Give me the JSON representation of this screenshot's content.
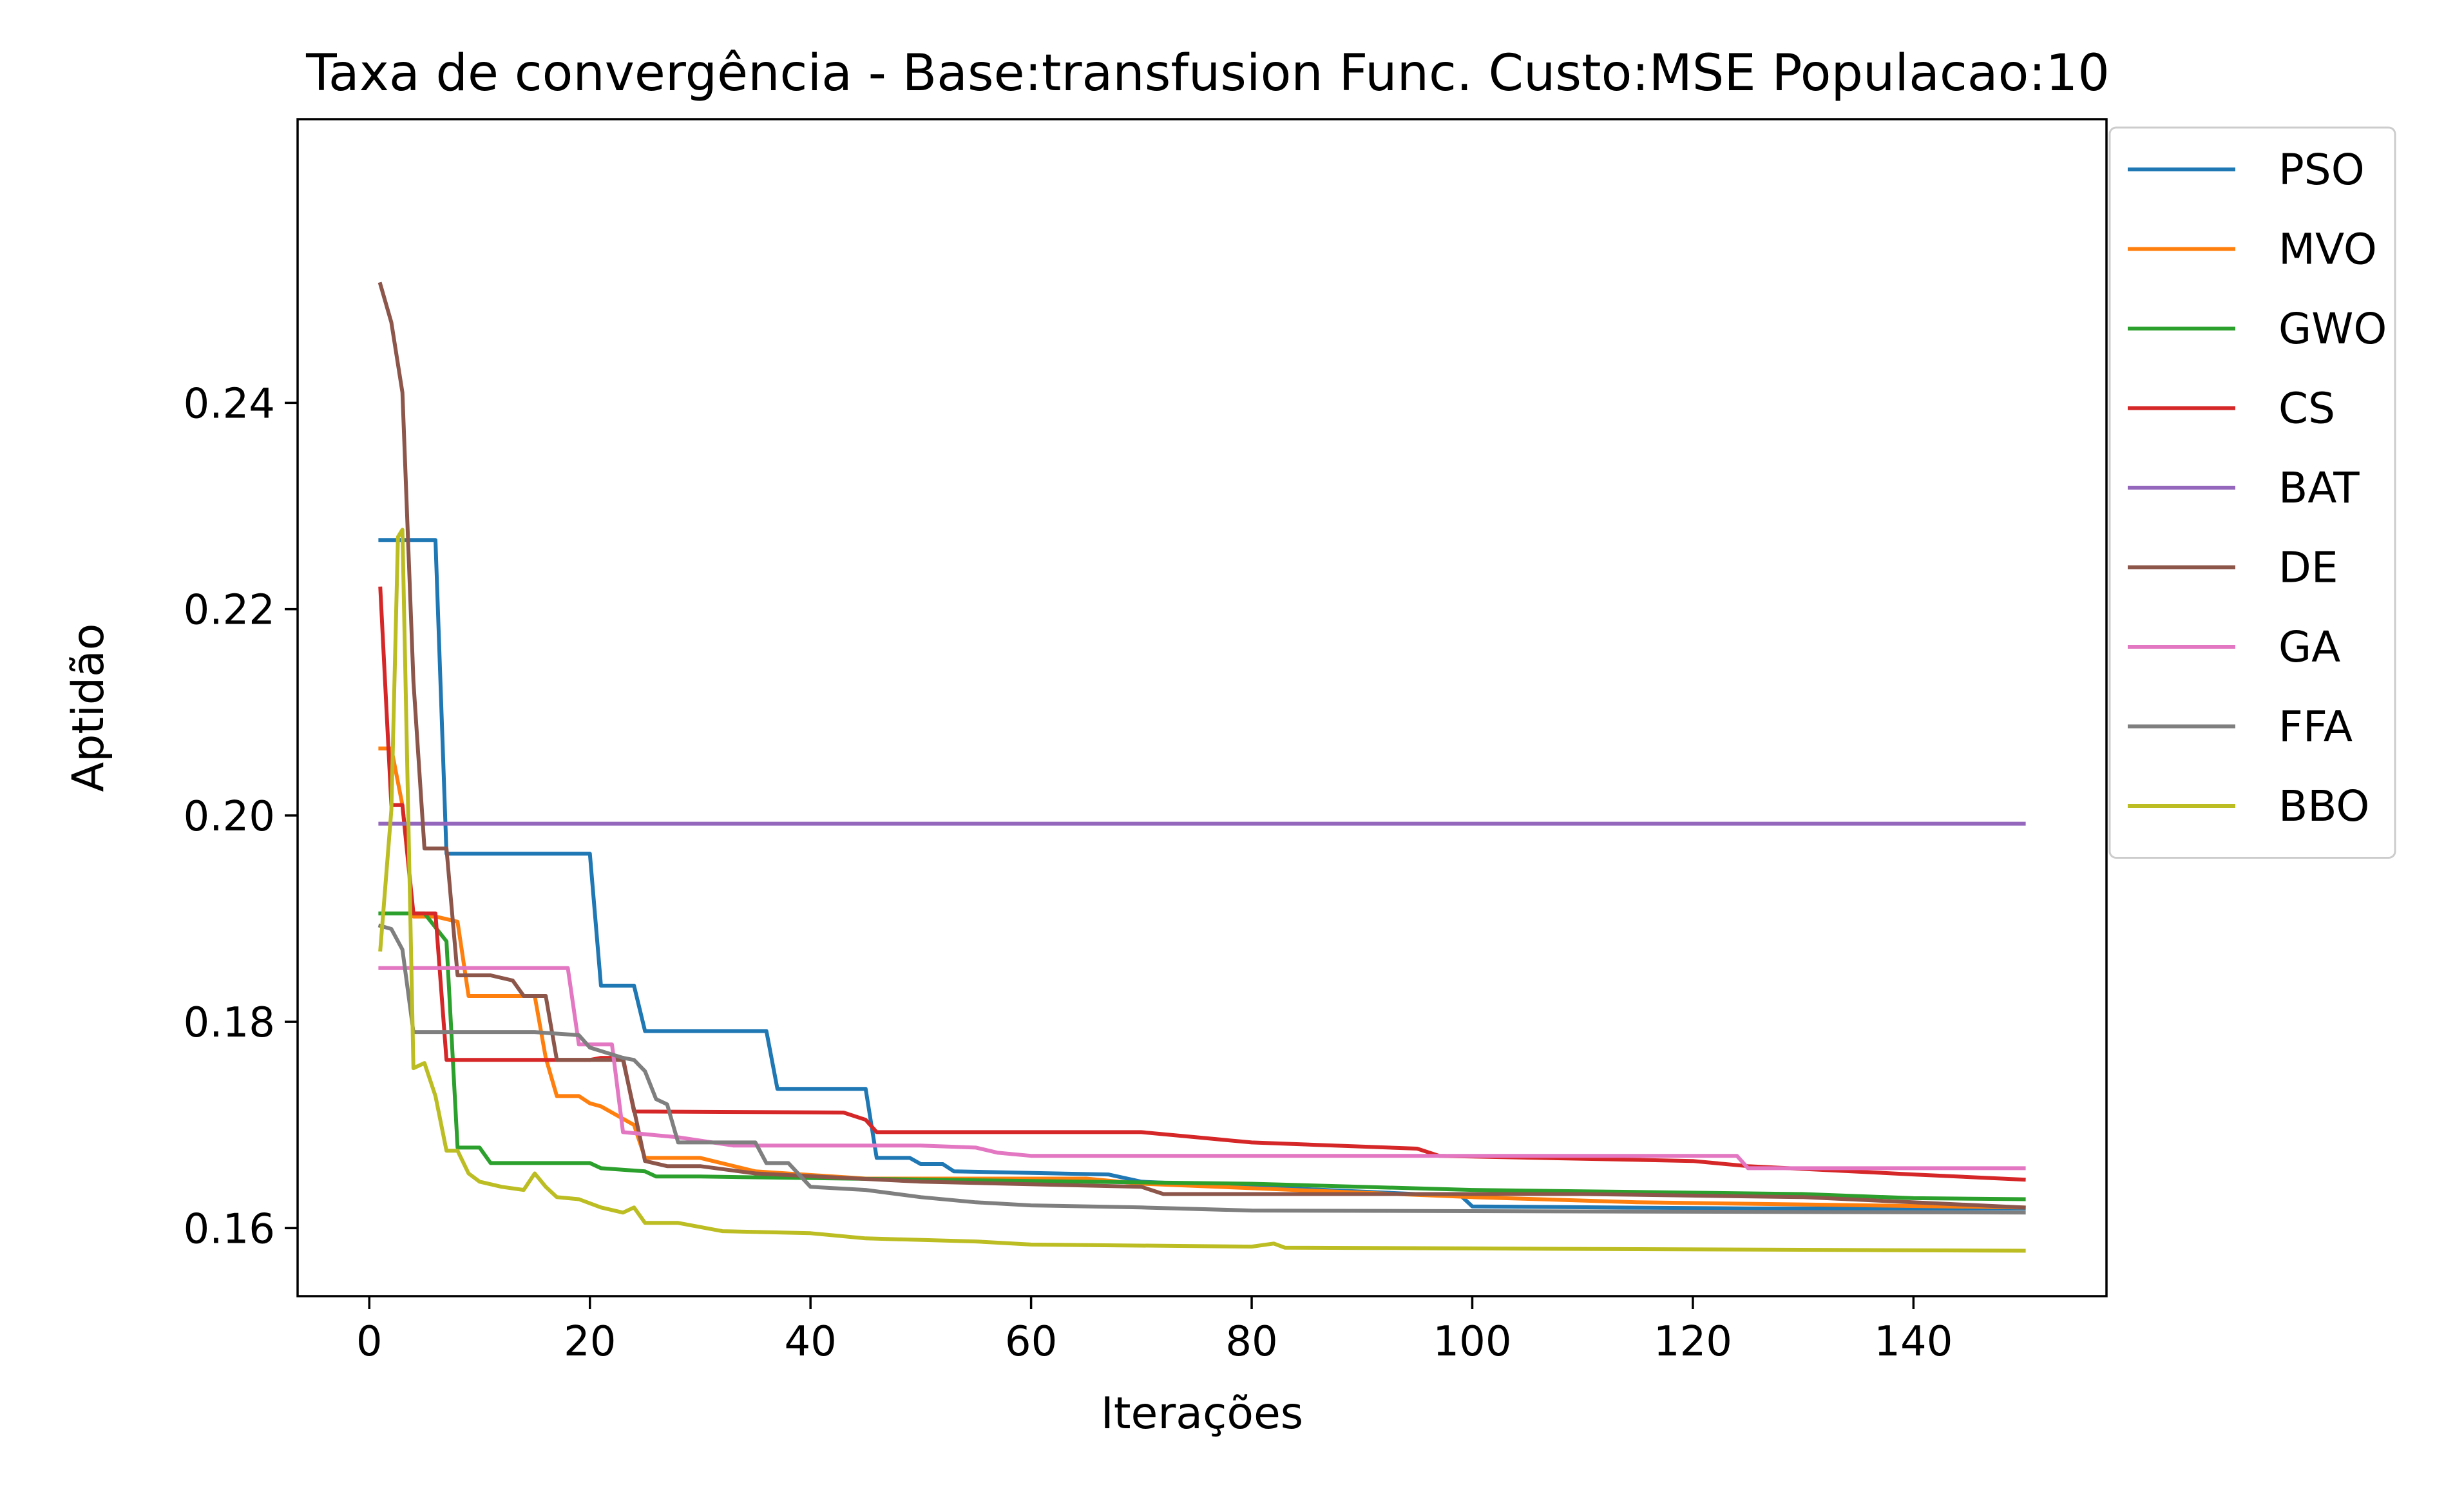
{
  "chart_data": {
    "type": "line",
    "title": "Taxa de convergência - Base:transfusion Func. Custo:MSE Populacao:10",
    "xlabel": "Iterações",
    "ylabel": "Aptidão",
    "xlim": [
      -6.5,
      157.5
    ],
    "ylim": [
      0.1534,
      0.2675
    ],
    "xticks": [
      0,
      20,
      40,
      60,
      80,
      100,
      120,
      140
    ],
    "xtick_labels": [
      "0",
      "20",
      "40",
      "60",
      "80",
      "100",
      "120",
      "140"
    ],
    "yticks": [
      0.16,
      0.18,
      0.2,
      0.22,
      0.24
    ],
    "ytick_labels": [
      "0.16",
      "0.18",
      "0.20",
      "0.22",
      "0.24"
    ],
    "grid": false,
    "legend_position": "outside-right-top",
    "series": [
      {
        "name": "PSO",
        "color": "#1f77b4",
        "points": [
          [
            1,
            0.2267
          ],
          [
            6,
            0.2267
          ],
          [
            7,
            0.1963
          ],
          [
            20,
            0.1963
          ],
          [
            21,
            0.1835
          ],
          [
            24,
            0.1835
          ],
          [
            25,
            0.1791
          ],
          [
            36,
            0.1791
          ],
          [
            37,
            0.1735
          ],
          [
            45,
            0.1735
          ],
          [
            46,
            0.1668
          ],
          [
            49,
            0.1668
          ],
          [
            50,
            0.1662
          ],
          [
            52,
            0.1662
          ],
          [
            53,
            0.1655
          ],
          [
            67,
            0.1652
          ],
          [
            70,
            0.1645
          ],
          [
            99,
            0.1631
          ],
          [
            100,
            0.1621
          ],
          [
            125,
            0.1619
          ],
          [
            150,
            0.1619
          ]
        ]
      },
      {
        "name": "MVO",
        "color": "#ff7f0e",
        "points": [
          [
            1,
            0.2065
          ],
          [
            2,
            0.2065
          ],
          [
            3,
            0.201
          ],
          [
            4,
            0.1902
          ],
          [
            6,
            0.1902
          ],
          [
            8,
            0.1897
          ],
          [
            9,
            0.1825
          ],
          [
            15,
            0.1825
          ],
          [
            16,
            0.1765
          ],
          [
            17,
            0.1728
          ],
          [
            19,
            0.1728
          ],
          [
            20,
            0.1721
          ],
          [
            21,
            0.1718
          ],
          [
            22,
            0.1712
          ],
          [
            24,
            0.17
          ],
          [
            25,
            0.1668
          ],
          [
            30,
            0.1668
          ],
          [
            35,
            0.1655
          ],
          [
            45,
            0.1648
          ],
          [
            65,
            0.1648
          ],
          [
            70,
            0.1643
          ],
          [
            100,
            0.163
          ],
          [
            115,
            0.1625
          ],
          [
            150,
            0.162
          ]
        ]
      },
      {
        "name": "GWO",
        "color": "#2ca02c",
        "points": [
          [
            1,
            0.1905
          ],
          [
            5,
            0.1905
          ],
          [
            7,
            0.1878
          ],
          [
            8,
            0.1678
          ],
          [
            10,
            0.1678
          ],
          [
            11,
            0.1663
          ],
          [
            20,
            0.1663
          ],
          [
            21,
            0.1658
          ],
          [
            25,
            0.1655
          ],
          [
            26,
            0.165
          ],
          [
            30,
            0.165
          ],
          [
            50,
            0.1647
          ],
          [
            80,
            0.1643
          ],
          [
            100,
            0.1637
          ],
          [
            130,
            0.1633
          ],
          [
            140,
            0.1629
          ],
          [
            150,
            0.1628
          ]
        ]
      },
      {
        "name": "CS",
        "color": "#d62728",
        "points": [
          [
            1,
            0.222
          ],
          [
            2,
            0.201
          ],
          [
            3,
            0.201
          ],
          [
            4,
            0.1905
          ],
          [
            6,
            0.1905
          ],
          [
            7,
            0.1763
          ],
          [
            20,
            0.1763
          ],
          [
            21,
            0.1765
          ],
          [
            23,
            0.1765
          ],
          [
            24,
            0.1713
          ],
          [
            43,
            0.1712
          ],
          [
            45,
            0.1705
          ],
          [
            46,
            0.1693
          ],
          [
            70,
            0.1693
          ],
          [
            75,
            0.1688
          ],
          [
            80,
            0.1683
          ],
          [
            95,
            0.1677
          ],
          [
            97,
            0.167
          ],
          [
            120,
            0.1665
          ],
          [
            125,
            0.166
          ],
          [
            140,
            0.1652
          ],
          [
            150,
            0.1647
          ]
        ]
      },
      {
        "name": "BAT",
        "color": "#9467bd",
        "points": [
          [
            1,
            0.1992
          ],
          [
            150,
            0.1992
          ]
        ]
      },
      {
        "name": "DE",
        "color": "#8c564b",
        "points": [
          [
            1,
            0.2515
          ],
          [
            2,
            0.2478
          ],
          [
            3,
            0.241
          ],
          [
            4,
            0.213
          ],
          [
            5,
            0.1968
          ],
          [
            7,
            0.1968
          ],
          [
            8,
            0.1845
          ],
          [
            11,
            0.1845
          ],
          [
            13,
            0.184
          ],
          [
            14,
            0.1825
          ],
          [
            16,
            0.1825
          ],
          [
            17,
            0.1763
          ],
          [
            23,
            0.1763
          ],
          [
            24,
            0.1715
          ],
          [
            25,
            0.1665
          ],
          [
            27,
            0.166
          ],
          [
            30,
            0.166
          ],
          [
            35,
            0.1653
          ],
          [
            50,
            0.1645
          ],
          [
            70,
            0.164
          ],
          [
            72,
            0.1633
          ],
          [
            110,
            0.1633
          ],
          [
            130,
            0.163
          ],
          [
            150,
            0.162
          ]
        ]
      },
      {
        "name": "GA",
        "color": "#e377c2",
        "points": [
          [
            1,
            0.1852
          ],
          [
            18,
            0.1852
          ],
          [
            19,
            0.1778
          ],
          [
            22,
            0.1778
          ],
          [
            23,
            0.1693
          ],
          [
            28,
            0.1688
          ],
          [
            33,
            0.168
          ],
          [
            50,
            0.168
          ],
          [
            55,
            0.1678
          ],
          [
            57,
            0.1673
          ],
          [
            60,
            0.167
          ],
          [
            124,
            0.167
          ],
          [
            125,
            0.1658
          ],
          [
            150,
            0.1658
          ]
        ]
      },
      {
        "name": "FFA",
        "color": "#7f7f7f",
        "points": [
          [
            1,
            0.1893
          ],
          [
            2,
            0.189
          ],
          [
            3,
            0.187
          ],
          [
            4,
            0.179
          ],
          [
            15,
            0.179
          ],
          [
            19,
            0.1787
          ],
          [
            20,
            0.1775
          ],
          [
            23,
            0.1765
          ],
          [
            24,
            0.1763
          ],
          [
            25,
            0.1752
          ],
          [
            26,
            0.1725
          ],
          [
            27,
            0.172
          ],
          [
            28,
            0.1683
          ],
          [
            35,
            0.1683
          ],
          [
            36,
            0.1663
          ],
          [
            38,
            0.1663
          ],
          [
            40,
            0.164
          ],
          [
            45,
            0.1637
          ],
          [
            50,
            0.163
          ],
          [
            55,
            0.1625
          ],
          [
            60,
            0.1622
          ],
          [
            70,
            0.162
          ],
          [
            80,
            0.1617
          ],
          [
            150,
            0.1615
          ]
        ]
      },
      {
        "name": "BBO",
        "color": "#bcbd22",
        "points": [
          [
            1,
            0.187
          ],
          [
            2,
            0.2005
          ],
          [
            2.6,
            0.227
          ],
          [
            3,
            0.2277
          ],
          [
            4,
            0.1755
          ],
          [
            5,
            0.176
          ],
          [
            6,
            0.1728
          ],
          [
            7,
            0.1675
          ],
          [
            8,
            0.1675
          ],
          [
            9,
            0.1653
          ],
          [
            10,
            0.1645
          ],
          [
            12,
            0.164
          ],
          [
            14,
            0.1637
          ],
          [
            15,
            0.1653
          ],
          [
            16,
            0.164
          ],
          [
            17,
            0.163
          ],
          [
            19,
            0.1628
          ],
          [
            21,
            0.162
          ],
          [
            23,
            0.1615
          ],
          [
            24,
            0.162
          ],
          [
            25,
            0.1605
          ],
          [
            28,
            0.1605
          ],
          [
            32,
            0.1597
          ],
          [
            40,
            0.1595
          ],
          [
            45,
            0.159
          ],
          [
            55,
            0.1587
          ],
          [
            60,
            0.1584
          ],
          [
            80,
            0.1582
          ],
          [
            82,
            0.1585
          ],
          [
            83,
            0.1581
          ],
          [
            150,
            0.1578
          ]
        ]
      }
    ]
  }
}
